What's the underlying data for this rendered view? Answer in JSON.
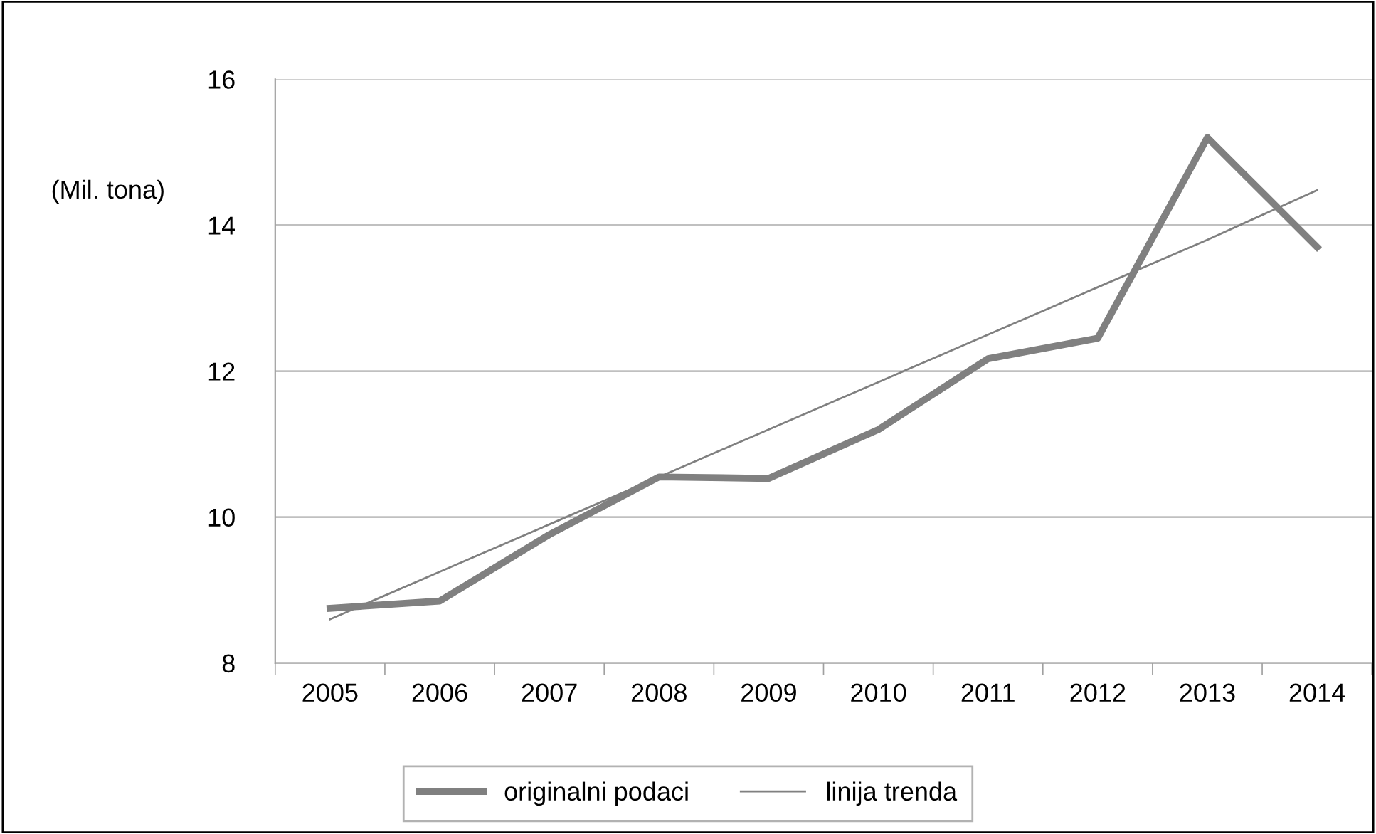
{
  "chart_data": {
    "type": "line",
    "ylabel": "(Mil. tona)",
    "categories": [
      "2005",
      "2006",
      "2007",
      "2008",
      "2009",
      "2010",
      "2011",
      "2012",
      "2013",
      "2014"
    ],
    "series": [
      {
        "name": "originalni podaci",
        "color": "#808080",
        "values": [
          8.75,
          8.85,
          9.76,
          10.55,
          10.53,
          11.2,
          12.17,
          12.45,
          15.2,
          13.7
        ]
      },
      {
        "name": "linija trenda",
        "color": "#808080",
        "values": [
          8.6,
          9.25,
          9.9,
          10.55,
          11.2,
          11.85,
          12.5,
          13.15,
          13.8,
          14.48
        ]
      }
    ],
    "ylim": [
      8,
      16
    ],
    "yticks": [
      8,
      10,
      12,
      14,
      16
    ],
    "grid": "y",
    "legend": "bottom",
    "marker": "none",
    "line_style": "solid"
  }
}
